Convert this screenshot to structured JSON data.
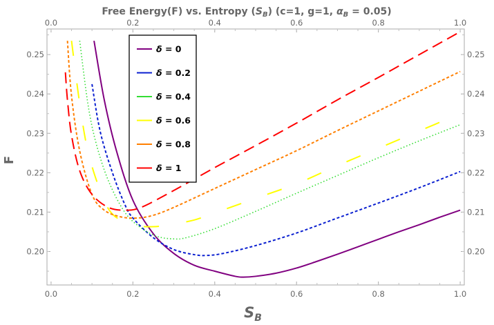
{
  "chart_data": {
    "type": "line",
    "title_prefix": "Free Energy(F) vs. Entropy (",
    "title_var_main": "S",
    "title_var_sub": "B",
    "title_mid": ") (c=1, g=1, ",
    "title_param_main": "α",
    "title_param_sub": "B",
    "title_suffix": " = 0.05)",
    "xlabel_main": "S",
    "xlabel_sub": "B",
    "ylabel": "F",
    "xlim": [
      -0.01,
      1.01
    ],
    "ylim": [
      0.1915,
      0.2565
    ],
    "xticks": [
      "0.0",
      "0.2",
      "0.4",
      "0.6",
      "0.8",
      "1.0"
    ],
    "yticks": [
      "0.20",
      "0.21",
      "0.22",
      "0.23",
      "0.24",
      "0.25"
    ],
    "legend_placement": "top-left",
    "series": [
      {
        "name": "δ = 0",
        "delta_symbol": "δ",
        "delta_value": "0",
        "color": "#800080",
        "dash": "none",
        "x": [
          0.105,
          0.13,
          0.16,
          0.2,
          0.25,
          0.3,
          0.35,
          0.4,
          0.45,
          0.47,
          0.5,
          0.55,
          0.6,
          0.65,
          0.7,
          0.75,
          0.8,
          0.85,
          0.9,
          0.95,
          1.0
        ],
        "y": [
          0.2535,
          0.2385,
          0.2255,
          0.213,
          0.2045,
          0.1995,
          0.1965,
          0.195,
          0.1937,
          0.1935,
          0.1937,
          0.1945,
          0.1958,
          0.1975,
          0.1993,
          0.2012,
          0.2031,
          0.205,
          0.2068,
          0.2087,
          0.2105
        ]
      },
      {
        "name": "δ = 0.2",
        "delta_symbol": "δ",
        "delta_value": "0.2",
        "color": "#0a1fd0",
        "dash": "4,3",
        "x": [
          0.1,
          0.12,
          0.15,
          0.18,
          0.2,
          0.25,
          0.3,
          0.35,
          0.38,
          0.42,
          0.5,
          0.6,
          0.7,
          0.8,
          0.9,
          1.0
        ],
        "y": [
          0.2425,
          0.2305,
          0.22,
          0.212,
          0.2085,
          0.2035,
          0.2005,
          0.1992,
          0.199,
          0.1995,
          0.2015,
          0.2047,
          0.2085,
          0.2123,
          0.2162,
          0.2203
        ]
      },
      {
        "name": "δ = 0.4",
        "delta_symbol": "δ",
        "delta_value": "0.4",
        "color": "#33dd33",
        "dash": "1.5,3",
        "x": [
          0.07,
          0.09,
          0.11,
          0.14,
          0.18,
          0.22,
          0.26,
          0.3,
          0.33,
          0.4,
          0.5,
          0.6,
          0.7,
          0.8,
          0.9,
          1.0
        ],
        "y": [
          0.2535,
          0.2375,
          0.2275,
          0.218,
          0.21,
          0.206,
          0.2038,
          0.2032,
          0.2035,
          0.2058,
          0.2102,
          0.2148,
          0.2193,
          0.2238,
          0.2281,
          0.2322
        ]
      },
      {
        "name": "δ = 0.6",
        "delta_symbol": "δ",
        "delta_value": "0.6",
        "color": "#ffff00",
        "dash": "22,40",
        "x": [
          0.05,
          0.07,
          0.09,
          0.12,
          0.15,
          0.2,
          0.25,
          0.3,
          0.35,
          0.4,
          0.5,
          0.6,
          0.7,
          0.8,
          0.9,
          1.0
        ],
        "y": [
          0.2535,
          0.2375,
          0.2255,
          0.2155,
          0.2095,
          0.2068,
          0.2063,
          0.207,
          0.208,
          0.2098,
          0.2135,
          0.2172,
          0.2218,
          0.2262,
          0.2306,
          0.235
        ]
      },
      {
        "name": "δ = 0.8",
        "delta_symbol": "δ",
        "delta_value": "0.8",
        "color": "#ff7f00",
        "dash": "4,3",
        "x": [
          0.04,
          0.05,
          0.07,
          0.1,
          0.13,
          0.17,
          0.21,
          0.25,
          0.3,
          0.4,
          0.5,
          0.6,
          0.7,
          0.8,
          0.9,
          1.0
        ],
        "y": [
          0.2535,
          0.2395,
          0.2255,
          0.2145,
          0.2105,
          0.2088,
          0.2085,
          0.2092,
          0.2112,
          0.216,
          0.2208,
          0.2256,
          0.2307,
          0.2357,
          0.2407,
          0.2457
        ]
      },
      {
        "name": "δ = 1",
        "delta_symbol": "δ",
        "delta_value": "1",
        "color": "#ff0000",
        "dash": "16,8",
        "x": [
          0.035,
          0.04,
          0.05,
          0.07,
          0.1,
          0.14,
          0.18,
          0.22,
          0.3,
          0.4,
          0.5,
          0.6,
          0.7,
          0.8,
          0.9,
          1.0
        ],
        "y": [
          0.2455,
          0.2385,
          0.2295,
          0.2205,
          0.2145,
          0.2112,
          0.2105,
          0.2112,
          0.2155,
          0.2213,
          0.2269,
          0.2326,
          0.2385,
          0.2442,
          0.25,
          0.2558
        ]
      }
    ]
  }
}
